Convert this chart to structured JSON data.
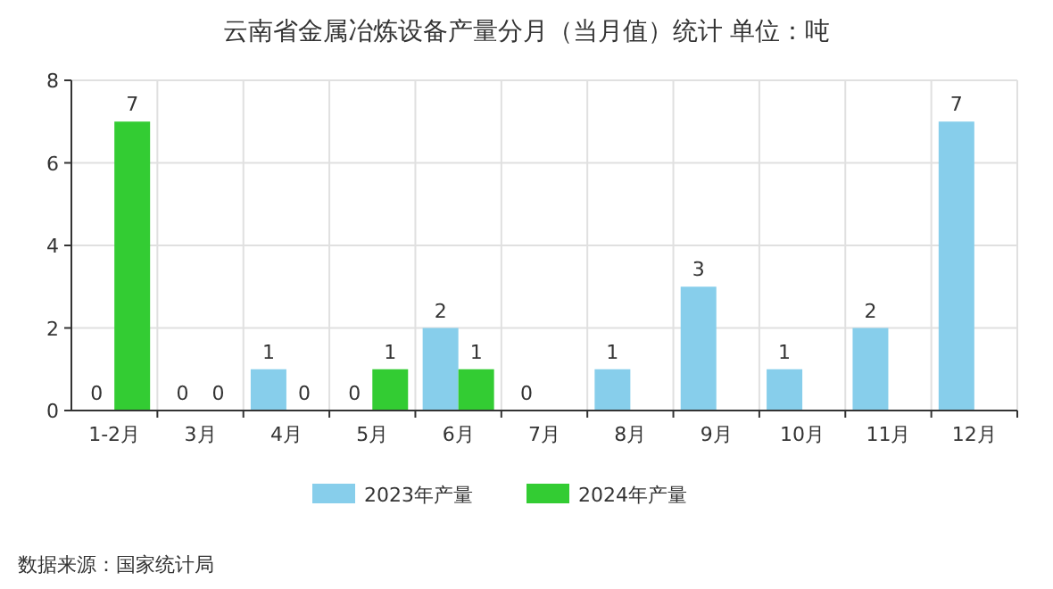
{
  "chart_data": {
    "type": "bar",
    "title": "云南省金属冶炼设备产量分月（当月值）统计  单位：吨",
    "categories": [
      "1-2月",
      "3月",
      "4月",
      "5月",
      "6月",
      "7月",
      "8月",
      "9月",
      "10月",
      "11月",
      "12月"
    ],
    "series": [
      {
        "name": "2023年产量",
        "color": "#87ceeb",
        "values": [
          0,
          0,
          1,
          0,
          2,
          0,
          1,
          3,
          1,
          2,
          7
        ]
      },
      {
        "name": "2024年产量",
        "color": "#33cc33",
        "values": [
          7,
          0,
          0,
          1,
          1,
          null,
          null,
          null,
          null,
          null,
          null
        ]
      }
    ],
    "ylim": [
      0,
      8
    ],
    "yticks": [
      0,
      2,
      4,
      6,
      8
    ],
    "grid": true,
    "legend": "bottom",
    "data_labels": true,
    "annotations": [
      "数据来源：国家统计局"
    ]
  }
}
